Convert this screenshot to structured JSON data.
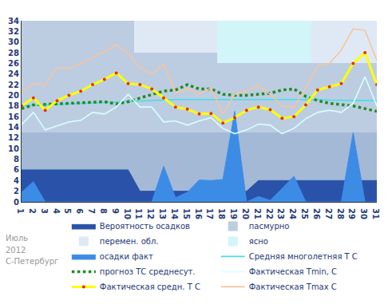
{
  "chart_data": {
    "type": "line",
    "x": [
      1,
      2,
      3,
      4,
      5,
      6,
      7,
      8,
      9,
      10,
      11,
      12,
      13,
      14,
      15,
      16,
      17,
      18,
      19,
      20,
      21,
      22,
      23,
      24,
      25,
      26,
      27,
      28,
      29,
      30,
      31
    ],
    "xlim": [
      1,
      31
    ],
    "xticks": [
      1,
      2,
      3,
      4,
      5,
      6,
      7,
      8,
      9,
      10,
      11,
      12,
      13,
      14,
      15,
      16,
      17,
      18,
      19,
      20,
      21,
      22,
      23,
      24,
      25,
      26,
      27,
      28,
      29,
      30,
      31
    ],
    "ylim": [
      0,
      34
    ],
    "yticks": [
      0,
      2,
      4,
      6,
      8,
      10,
      12,
      14,
      16,
      18,
      20,
      22,
      24,
      26,
      28,
      30,
      32,
      34
    ],
    "grid": false,
    "legend": "bottom",
    "annotations": [
      "Июль",
      "2012",
      "С-Петербург"
    ],
    "series": [
      {
        "name": "Вероятность осадков",
        "type": "area",
        "color": "#2a52a8",
        "values": [
          6,
          6,
          6,
          6,
          6,
          6,
          6,
          6,
          6,
          6,
          2,
          2,
          2,
          2,
          2,
          2,
          2,
          2,
          2,
          2,
          4,
          4,
          4,
          4,
          4,
          4,
          4,
          4,
          4,
          4,
          4
        ]
      },
      {
        "name": "пасмурно",
        "type": "band",
        "color": "#bccde2",
        "low": [
          13,
          13,
          13,
          13,
          13,
          13,
          13,
          13,
          13,
          13,
          13,
          13,
          13,
          13,
          13,
          13,
          13,
          13,
          13,
          13,
          13,
          13,
          13,
          13,
          13,
          13,
          13,
          13,
          13,
          13,
          13
        ],
        "high": [
          34,
          34,
          34,
          34,
          34,
          34,
          34,
          34,
          34,
          34,
          28,
          28,
          28,
          28,
          28,
          28,
          28,
          26,
          26,
          26,
          26,
          26,
          26,
          26,
          26,
          26,
          26,
          26,
          26,
          26,
          26
        ]
      },
      {
        "name": "перемен. обл.",
        "type": "band",
        "color": "#dfe9f5",
        "low": [
          null,
          null,
          null,
          null,
          null,
          null,
          null,
          null,
          null,
          null,
          28,
          28,
          28,
          28,
          28,
          28,
          28,
          null,
          null,
          null,
          null,
          null,
          null,
          null,
          null,
          26,
          26,
          26,
          26,
          26,
          26
        ],
        "high": [
          null,
          null,
          null,
          null,
          null,
          null,
          null,
          null,
          null,
          null,
          34,
          34,
          34,
          34,
          34,
          34,
          34,
          null,
          null,
          null,
          null,
          null,
          null,
          null,
          null,
          34,
          34,
          34,
          34,
          34,
          34
        ]
      },
      {
        "name": "ясно",
        "type": "band",
        "color": "#d2f5f9",
        "low": [
          null,
          null,
          null,
          null,
          null,
          null,
          null,
          null,
          null,
          null,
          null,
          null,
          null,
          null,
          null,
          null,
          null,
          26,
          26,
          26,
          26,
          26,
          26,
          26,
          26,
          null,
          null,
          null,
          null,
          null,
          null
        ],
        "high": [
          null,
          null,
          null,
          null,
          null,
          null,
          null,
          null,
          null,
          null,
          null,
          null,
          null,
          null,
          null,
          null,
          null,
          34,
          34,
          34,
          34,
          34,
          34,
          34,
          34,
          null,
          null,
          null,
          null,
          null,
          null
        ]
      },
      {
        "name": "осадки факт",
        "type": "area",
        "color": "#3c8ce6",
        "values": [
          1.8,
          3.8,
          0,
          0,
          0,
          0,
          0,
          0,
          0,
          0,
          0,
          0,
          6.7,
          0.8,
          1.8,
          4.1,
          4,
          4.2,
          17,
          0,
          1,
          0.3,
          2.5,
          4.8,
          0,
          0,
          0,
          0,
          13,
          0,
          0
        ]
      },
      {
        "name": "Средняя многолетняя Т С",
        "type": "line",
        "color": "#3ee0e6",
        "line_style": "solid",
        "values": [
          18.0,
          18.1,
          18.2,
          18.3,
          18.4,
          18.5,
          18.6,
          18.7,
          18.8,
          18.9,
          19.0,
          19.1,
          19.1,
          19.2,
          19.2,
          19.2,
          19.3,
          19.3,
          19.3,
          19.3,
          19.3,
          19.3,
          19.3,
          19.2,
          19.2,
          19.2,
          19.1,
          19.1,
          19.1,
          19.0,
          19.0
        ]
      },
      {
        "name": "прогноз ТС среднесут.",
        "type": "line",
        "color": "#1f8a1f",
        "line_style": "dotted",
        "values": [
          17.5,
          18.2,
          18.3,
          18.4,
          18.5,
          18.6,
          18.7,
          18.8,
          18.4,
          18.8,
          19.5,
          20.2,
          20.8,
          21,
          22,
          21.2,
          21.2,
          20.2,
          20,
          20,
          20.2,
          20.4,
          21,
          21.2,
          19.8,
          19,
          18.5,
          18.3,
          18,
          17.5,
          17
        ]
      },
      {
        "name": "Фактическая Tmin, C",
        "type": "line",
        "color": "#d8ffff",
        "line_style": "solid",
        "values": [
          14.5,
          16.8,
          13.5,
          14.2,
          15,
          15.3,
          16.8,
          16.5,
          17.8,
          20.2,
          17.8,
          17.8,
          15,
          15.2,
          14.4,
          15.2,
          15.8,
          13.8,
          12.8,
          13.5,
          14.6,
          14.4,
          12.8,
          13.8,
          15.6,
          16.8,
          17.2,
          16.8,
          18.5,
          23.5,
          18
        ]
      },
      {
        "name": "Фактическая средн. Т С",
        "type": "line",
        "color": "#ffff00",
        "line_style": "solid",
        "marker": "circle",
        "values": [
          18,
          19.5,
          17.2,
          19,
          20,
          20.8,
          22,
          23,
          24.2,
          22.2,
          22,
          21.2,
          19.5,
          17.8,
          17.4,
          16.5,
          16.6,
          14.8,
          15.8,
          17.2,
          17.8,
          17.3,
          15.7,
          16,
          18.2,
          21,
          21.6,
          22.2,
          26,
          28,
          22
        ]
      },
      {
        "name": "Фактическая Tmax C",
        "type": "line",
        "color": "#f8c49c",
        "line_style": "solid",
        "values": [
          20.5,
          22.2,
          22,
          25.2,
          25,
          26,
          27.2,
          28.2,
          29.5,
          27.8,
          25.2,
          24,
          25.8,
          20.5,
          21.2,
          20.2,
          21.4,
          16.5,
          20.2,
          20.8,
          21.8,
          20.2,
          18,
          17.8,
          21.5,
          25.5,
          26,
          28.5,
          32.5,
          32.2,
          26.5
        ]
      }
    ]
  }
}
